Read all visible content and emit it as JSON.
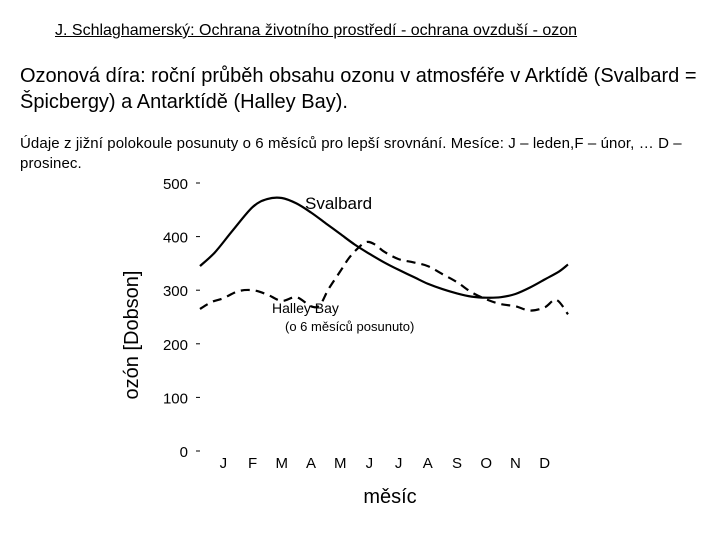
{
  "header": {
    "text": "J. Schlaghamerský: Ochrana životního prostředí - ochrana ovzduší - ozon"
  },
  "slide": {
    "title": "Ozonová díra: roční průběh obsahu ozonu v atmosféře v Arktídě (Svalbard = Špicbergy) a Antarktídě (Halley Bay).",
    "note": "Údaje z jižní polokoule posunuty o 6 měsíců pro lepší srovnání. Mesíce: J – leden,F – únor, … D – prosinec."
  },
  "chart_data": {
    "type": "line",
    "ylabel": "ozón [Dobson]",
    "xlabel": "měsíc",
    "ylim": [
      0,
      500
    ],
    "yticks": [
      "500",
      "400",
      "300",
      "200",
      "100",
      "0"
    ],
    "yticks_values": [
      500,
      400,
      300,
      200,
      100,
      0
    ],
    "categories": [
      "J",
      "F",
      "M",
      "A",
      "M",
      "J",
      "J",
      "A",
      "S",
      "O",
      "N",
      "D"
    ],
    "x_domain": [
      -0.8,
      11.8
    ],
    "series": [
      {
        "name": "Svalbard",
        "style": "solid",
        "x": [
          -0.8,
          -0.3,
          0.3,
          1.0,
          1.5,
          2.0,
          2.5,
          3.0,
          3.5,
          4.0,
          4.5,
          5.0,
          5.5,
          6.0,
          6.5,
          7.0,
          7.5,
          8.0,
          8.5,
          9.0,
          9.5,
          10.0,
          10.5,
          11.0,
          11.5,
          11.8
        ],
        "values": [
          345,
          370,
          410,
          455,
          470,
          472,
          462,
          445,
          425,
          405,
          385,
          368,
          352,
          338,
          325,
          312,
          302,
          294,
          288,
          286,
          287,
          293,
          305,
          320,
          335,
          348
        ]
      },
      {
        "name": "Halley Bay",
        "sublabel": "(o 6 měsíců posunuto)",
        "style": "dashed",
        "x": [
          -0.8,
          -0.4,
          0.0,
          0.5,
          1.0,
          1.5,
          2.0,
          2.5,
          3.0,
          3.3,
          3.6,
          4.0,
          4.3,
          4.6,
          4.9,
          5.2,
          5.5,
          6.0,
          6.5,
          7.0,
          7.5,
          8.0,
          8.5,
          9.0,
          9.5,
          10.0,
          10.5,
          11.0,
          11.4,
          11.8
        ],
        "values": [
          265,
          278,
          285,
          298,
          300,
          292,
          280,
          287,
          270,
          272,
          302,
          335,
          360,
          378,
          390,
          385,
          372,
          358,
          352,
          345,
          330,
          315,
          296,
          283,
          274,
          270,
          262,
          268,
          282,
          255
        ]
      }
    ],
    "annotations": [
      {
        "text": "Svalbard",
        "series": "Svalbard"
      },
      {
        "text": "Halley Bay",
        "series": "Halley Bay"
      },
      {
        "text": "(o 6 měsíců posunuto)",
        "series": "Halley Bay"
      }
    ]
  }
}
